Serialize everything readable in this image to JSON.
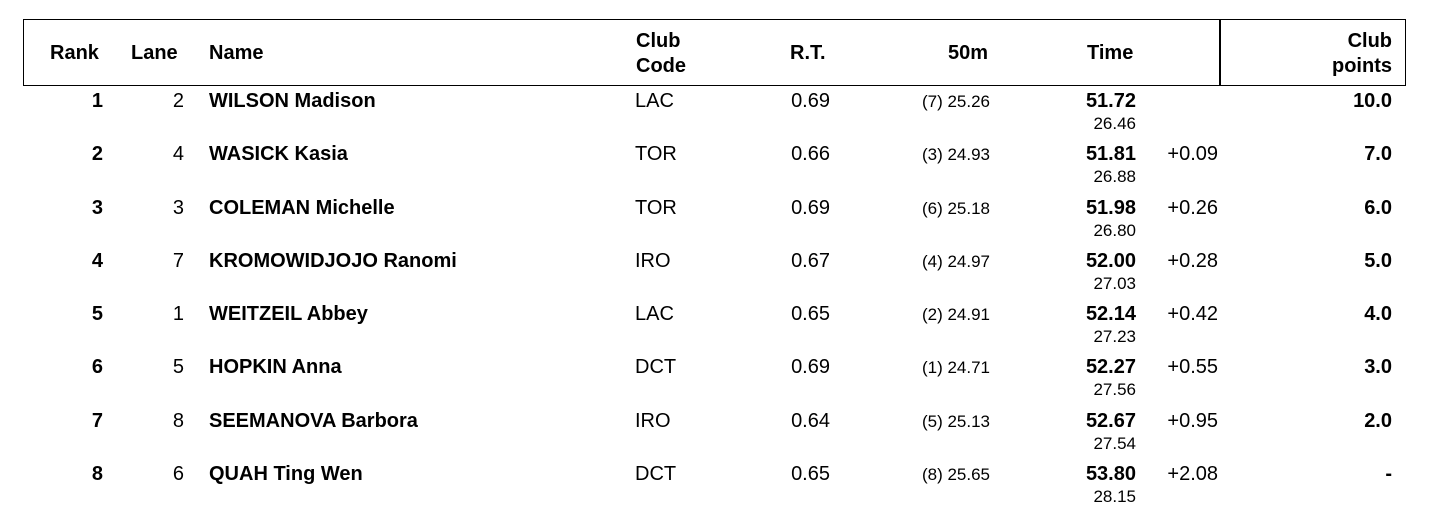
{
  "headers": {
    "rank": "Rank",
    "lane": "Lane",
    "name": "Name",
    "club_code_line1": "Club",
    "club_code_line2": "Code",
    "rt": "R.T.",
    "fifty": "50m",
    "time": "Time",
    "club_points_line1": "Club",
    "club_points_line2": "points"
  },
  "rows": [
    {
      "rank": "1",
      "lane": "2",
      "name": "WILSON Madison",
      "club": "LAC",
      "rt": "0.69",
      "split50": "(7) 25.26",
      "time": "51.72",
      "split2": "26.46",
      "behind": "",
      "points": "10.0"
    },
    {
      "rank": "2",
      "lane": "4",
      "name": "WASICK Kasia",
      "club": "TOR",
      "rt": "0.66",
      "split50": "(3) 24.93",
      "time": "51.81",
      "split2": "26.88",
      "behind": "+0.09",
      "points": "7.0"
    },
    {
      "rank": "3",
      "lane": "3",
      "name": "COLEMAN Michelle",
      "club": "TOR",
      "rt": "0.69",
      "split50": "(6) 25.18",
      "time": "51.98",
      "split2": "26.80",
      "behind": "+0.26",
      "points": "6.0"
    },
    {
      "rank": "4",
      "lane": "7",
      "name": "KROMOWIDJOJO Ranomi",
      "club": "IRO",
      "rt": "0.67",
      "split50": "(4) 24.97",
      "time": "52.00",
      "split2": "27.03",
      "behind": "+0.28",
      "points": "5.0"
    },
    {
      "rank": "5",
      "lane": "1",
      "name": "WEITZEIL Abbey",
      "club": "LAC",
      "rt": "0.65",
      "split50": "(2) 24.91",
      "time": "52.14",
      "split2": "27.23",
      "behind": "+0.42",
      "points": "4.0"
    },
    {
      "rank": "6",
      "lane": "5",
      "name": "HOPKIN Anna",
      "club": "DCT",
      "rt": "0.69",
      "split50": "(1) 24.71",
      "time": "52.27",
      "split2": "27.56",
      "behind": "+0.55",
      "points": "3.0"
    },
    {
      "rank": "7",
      "lane": "8",
      "name": "SEEMANOVA Barbora",
      "club": "IRO",
      "rt": "0.64",
      "split50": "(5) 25.13",
      "time": "52.67",
      "split2": "27.54",
      "behind": "+0.95",
      "points": "2.0"
    },
    {
      "rank": "8",
      "lane": "6",
      "name": "QUAH Ting Wen",
      "club": "DCT",
      "rt": "0.65",
      "split50": "(8) 25.65",
      "time": "53.80",
      "split2": "28.15",
      "behind": "+2.08",
      "points": "-"
    }
  ]
}
